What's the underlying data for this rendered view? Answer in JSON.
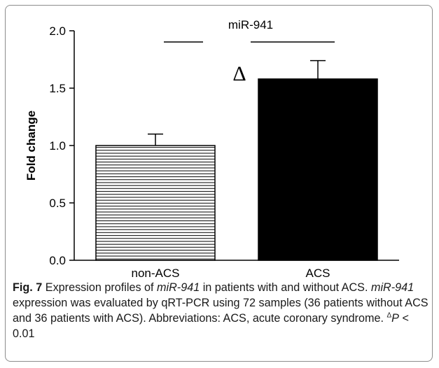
{
  "chart_data": {
    "type": "bar",
    "title": "miR-941",
    "xlabel": "",
    "ylabel": "Fold change",
    "categories": [
      "non-ACS",
      "ACS"
    ],
    "values": [
      1.0,
      1.58
    ],
    "errors": [
      0.1,
      0.16
    ],
    "ylim": [
      0,
      2.0
    ],
    "yticks": [
      "0.0",
      "0.5",
      "1.0",
      "1.5",
      "2.0"
    ],
    "bar_styles": [
      "horizontal-hatch",
      "solid-black"
    ],
    "significance_symbol": "Δ",
    "grid": false,
    "colors": {
      "bar_fill": "#000000",
      "hatch": "#000000",
      "axis": "#000000"
    }
  },
  "caption": {
    "fig_label": "Fig. 7",
    "line1_rest": " Expression profiles of ",
    "gene1": "miR-941",
    "line1_end": " in patients with and without ACS.",
    "gene2": "miR-941",
    "body": " expression was evaluated by qRT-PCR using 72 samples (36 patients without ACS and 36 patients with ACS). Abbreviations: ACS, acute coronary syndrome. ",
    "sup": "Δ",
    "p_italic": "P",
    "p_value": " < 0.01"
  }
}
